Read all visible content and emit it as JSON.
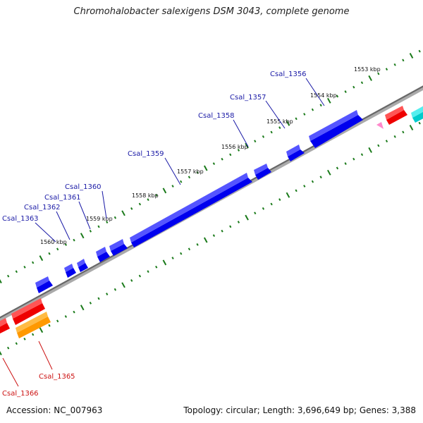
{
  "title": "Chromohalobacter salexigens DSM 3043, complete genome",
  "accession": "Accession: NC_007963",
  "summary": "Topology: circular; Length: 3,696,649 bp; Genes: 3,388",
  "kbp_labels": [
    "1553 kbp",
    "1554 kbp",
    "1555 kbp",
    "1556 kbp",
    "1557 kbp",
    "1558 kbp",
    "1559 kbp",
    "1560 kbp"
  ],
  "gene_labels": [
    "Csal_1356",
    "Csal_1357",
    "Csal_1358",
    "Csal_1359",
    "Csal_1360",
    "Csal_1361",
    "Csal_1362",
    "Csal_1363",
    "Csal_1365",
    "Csal_1366"
  ],
  "colors": {
    "forward_gene": "#0000ee",
    "reverse_gene": "#ee0000",
    "orange_gene": "#ff9900",
    "cyan_gene": "#00cccc",
    "pink_marker": "#ff88cc",
    "backbone": "#888888",
    "tick": "#1a7a1a",
    "forward_label": "#1a1aa6",
    "reverse_label": "#cc1111"
  }
}
